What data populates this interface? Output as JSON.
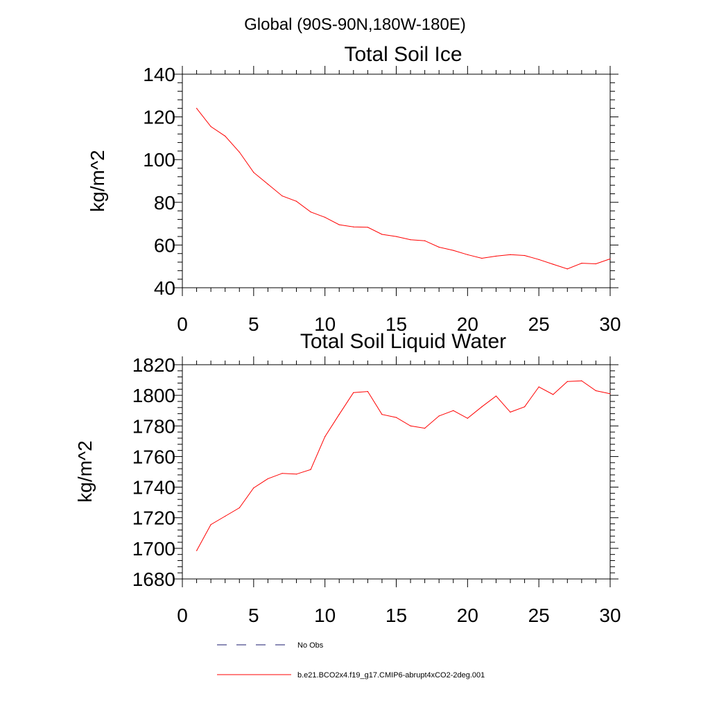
{
  "page_title": "Global (90S-90N,180W-180E)",
  "chart_data": [
    {
      "type": "line",
      "title": "Total Soil Ice",
      "xlabel": "",
      "ylabel": "kg/m^2",
      "xlim": [
        0,
        30
      ],
      "ylim": [
        40,
        140
      ],
      "xticks": [
        0,
        5,
        10,
        15,
        20,
        25,
        30
      ],
      "yticks": [
        40,
        60,
        80,
        100,
        120,
        140
      ],
      "grid": false,
      "x": [
        1,
        2,
        3,
        4,
        5,
        6,
        7,
        8,
        9,
        10,
        11,
        12,
        13,
        14,
        15,
        16,
        17,
        18,
        19,
        20,
        21,
        22,
        23,
        24,
        25,
        26,
        27,
        28,
        29,
        30
      ],
      "series": [
        {
          "name": "b.e21.BCO2x4.f19_g17.CMIP6-abrupt4xCO2-2deg.001",
          "color": "#ff0000",
          "values": [
            124,
            115.5,
            111,
            103.5,
            94,
            88.5,
            83,
            80.5,
            75.5,
            73,
            69.5,
            68.5,
            68.3,
            65,
            64,
            62.5,
            62,
            59,
            57.5,
            55.5,
            53.8,
            54.8,
            55.5,
            55.1,
            53.2,
            51,
            48.8,
            51.5,
            51.2,
            53.5
          ]
        }
      ]
    },
    {
      "type": "line",
      "title": "Total Soil Liquid Water",
      "xlabel": "",
      "ylabel": "kg/m^2",
      "xlim": [
        0,
        30
      ],
      "ylim": [
        1680,
        1820
      ],
      "xticks": [
        0,
        5,
        10,
        15,
        20,
        25,
        30
      ],
      "yticks": [
        1680,
        1700,
        1720,
        1740,
        1760,
        1780,
        1800,
        1820
      ],
      "grid": false,
      "x": [
        1,
        2,
        3,
        4,
        5,
        6,
        7,
        8,
        9,
        10,
        11,
        12,
        13,
        14,
        15,
        16,
        17,
        18,
        19,
        20,
        21,
        22,
        23,
        24,
        25,
        26,
        27,
        28,
        29,
        30
      ],
      "series": [
        {
          "name": "b.e21.BCO2x4.f19_g17.CMIP6-abrupt4xCO2-2deg.001",
          "color": "#ff0000",
          "values": [
            1698.5,
            1715.5,
            1721,
            1726.5,
            1739.5,
            1745.5,
            1749,
            1748.5,
            1751.5,
            1773,
            1787.5,
            1801.8,
            1802.5,
            1787.5,
            1785.5,
            1780,
            1778.5,
            1786.5,
            1790,
            1785,
            1792.5,
            1799.5,
            1789,
            1792.5,
            1805.5,
            1800.5,
            1809,
            1809.5,
            1803,
            1801
          ]
        }
      ]
    }
  ],
  "legend": [
    {
      "label": "No Obs",
      "style": "dashed",
      "color": "#1a1a6e"
    },
    {
      "label": "b.e21.BCO2x4.f19_g17.CMIP6-abrupt4xCO2-2deg.001",
      "style": "solid",
      "color": "#ff0000"
    }
  ]
}
